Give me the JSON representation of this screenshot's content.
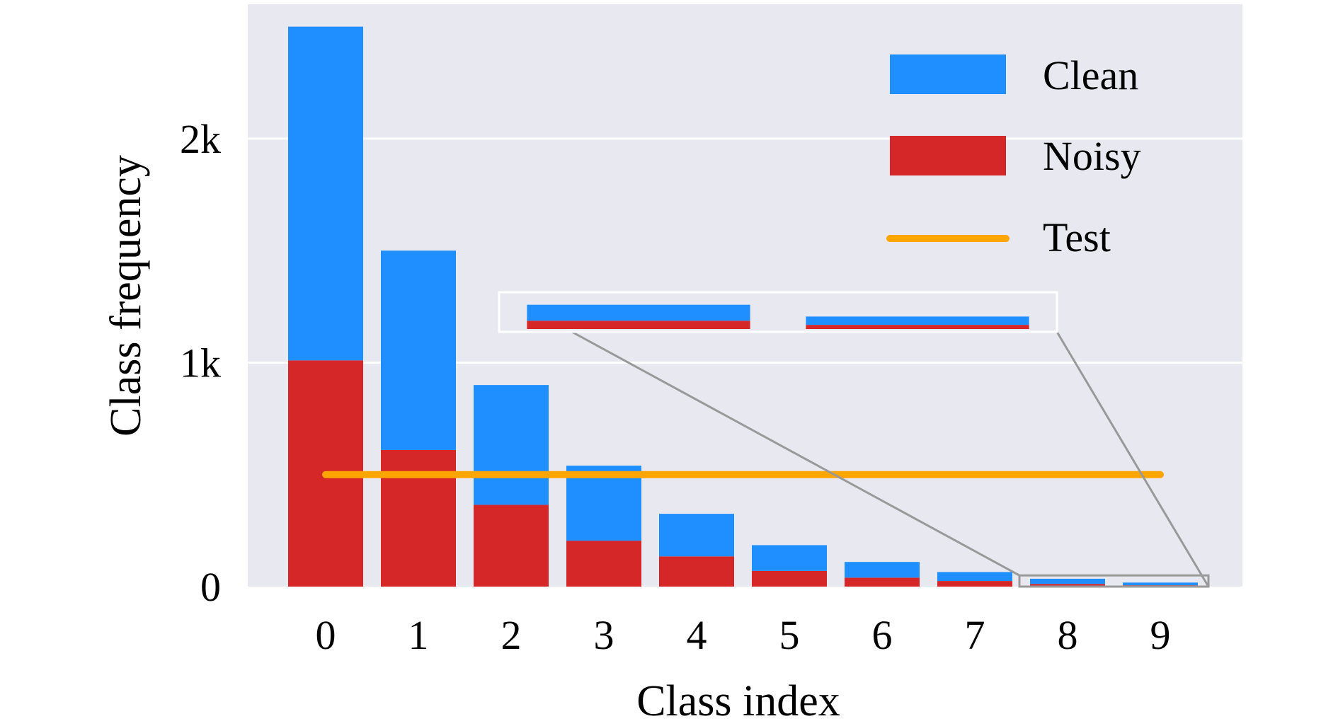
{
  "chart_data": {
    "type": "bar",
    "stacked": true,
    "categories": [
      "0",
      "1",
      "2",
      "3",
      "4",
      "5",
      "6",
      "7",
      "8",
      "9"
    ],
    "series": [
      {
        "name": "Noisy",
        "color": "#D62728",
        "values": [
          1010,
          610,
          365,
          205,
          135,
          70,
          40,
          25,
          12,
          6
        ]
      },
      {
        "name": "Clean",
        "color": "#1F8FFF",
        "values": [
          1490,
          890,
          535,
          335,
          190,
          115,
          70,
          40,
          23,
          12
        ]
      }
    ],
    "test": {
      "name": "Test",
      "color": "#FFA500",
      "value": 500
    },
    "xlabel": "Class index",
    "ylabel": "Class frequency",
    "ylim": [
      0,
      2600
    ],
    "yticks": [
      0,
      1000,
      2000
    ],
    "ytick_labels": [
      "0",
      "1k",
      "2k"
    ],
    "grid": true,
    "background": "#E8E8F1",
    "legend": {
      "position": "top-right",
      "entries": [
        "Clean",
        "Noisy",
        "Test"
      ]
    },
    "inset": {
      "categories": [
        "8",
        "9"
      ],
      "connector_color": "#999999"
    }
  }
}
